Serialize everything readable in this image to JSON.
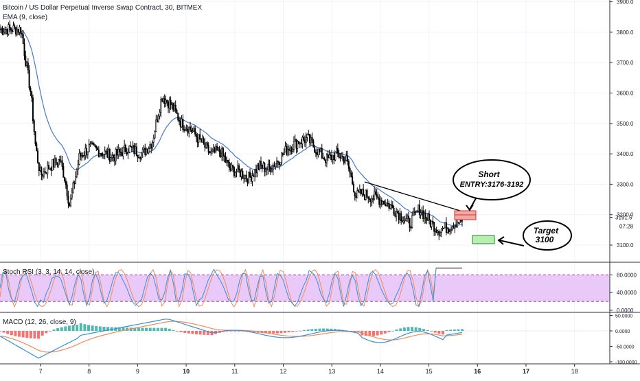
{
  "header": {
    "symbol_title": "Bitcoin / US Dollar Perpetual Inverse Swap Contract, 30, BITMEX",
    "ema_label": "EMA (9, close)"
  },
  "panels": {
    "stoch_label": "Stoch RSI (3, 3, 14, 14, close)",
    "macd_label": "MACD (12, 26, close, 9)"
  },
  "colors": {
    "background": "#ffffff",
    "candle": "#000000",
    "ema": "#4a78c8",
    "stoch_k": "#3a8fd6",
    "stoch_d": "#f08a5d",
    "stoch_band": "#e9c9f7",
    "stoch_band_lines": "#9c27b0",
    "macd_line": "#3a8fd6",
    "signal_line": "#f08a5d",
    "hist_positive": "#26a69a",
    "hist_negative": "#ef5350",
    "short_box": "#f4a7a7",
    "target_box": "#b6efb0"
  },
  "annotations": {
    "short_line1": "Short",
    "short_line2": "ENTRY:3176-3192",
    "target_line1": "Target",
    "target_line2": "3100"
  },
  "price_label": {
    "value": "3191.5",
    "countdown": "07:28"
  },
  "chart_data": [
    {
      "type": "candlestick",
      "title": "Bitcoin / US Dollar Perpetual Inverse Swap Contract, 30, BITMEX",
      "overlay": "EMA (9, close)",
      "x_ticks": [
        "7",
        "8",
        "9",
        "10",
        "11",
        "12",
        "13",
        "14",
        "15",
        "16",
        "17",
        "18"
      ],
      "y_ticks": [
        "3100.0",
        "3200.0",
        "3300.0",
        "3400.0",
        "3500.0",
        "3600.0",
        "3700.0",
        "3800.0",
        "3900.0"
      ],
      "ylim": [
        3000,
        3910
      ],
      "x": [
        6.6,
        6.7,
        6.8,
        6.9,
        7.0,
        7.2,
        7.4,
        7.5,
        7.6,
        7.8,
        8.0,
        8.2,
        8.5,
        8.8,
        9.1,
        9.3,
        9.5,
        9.7,
        9.9,
        10.1,
        10.3,
        10.5,
        10.7,
        10.9,
        11.1,
        11.3,
        11.5,
        11.7,
        11.9,
        12.1,
        12.3,
        12.5,
        12.7,
        12.9,
        13.1,
        13.3,
        13.5,
        13.6,
        13.8,
        14.0,
        14.2,
        14.4,
        14.6,
        14.8,
        15.0,
        15.2,
        15.4,
        15.6
      ],
      "close": [
        3810,
        3700,
        3600,
        3420,
        3330,
        3360,
        3380,
        3320,
        3230,
        3390,
        3420,
        3410,
        3390,
        3420,
        3400,
        3440,
        3590,
        3560,
        3500,
        3480,
        3440,
        3400,
        3410,
        3350,
        3340,
        3320,
        3360,
        3350,
        3380,
        3420,
        3440,
        3450,
        3410,
        3380,
        3400,
        3380,
        3260,
        3270,
        3260,
        3250,
        3230,
        3200,
        3170,
        3220,
        3180,
        3150,
        3160,
        3180
      ]
    },
    {
      "type": "line",
      "title": "Stoch RSI (3, 3, 14, 14, close)",
      "y_ticks": [
        "0.0000",
        "40.0000",
        "80.0000"
      ],
      "band": [
        20,
        80
      ],
      "ylim": [
        0,
        100
      ]
    },
    {
      "type": "line",
      "title": "MACD (12, 26, close, 9)",
      "y_ticks": [
        "-100.0000",
        "-50.0000",
        "0.0000",
        "50.0000"
      ],
      "ylim": [
        -100,
        50
      ]
    }
  ]
}
